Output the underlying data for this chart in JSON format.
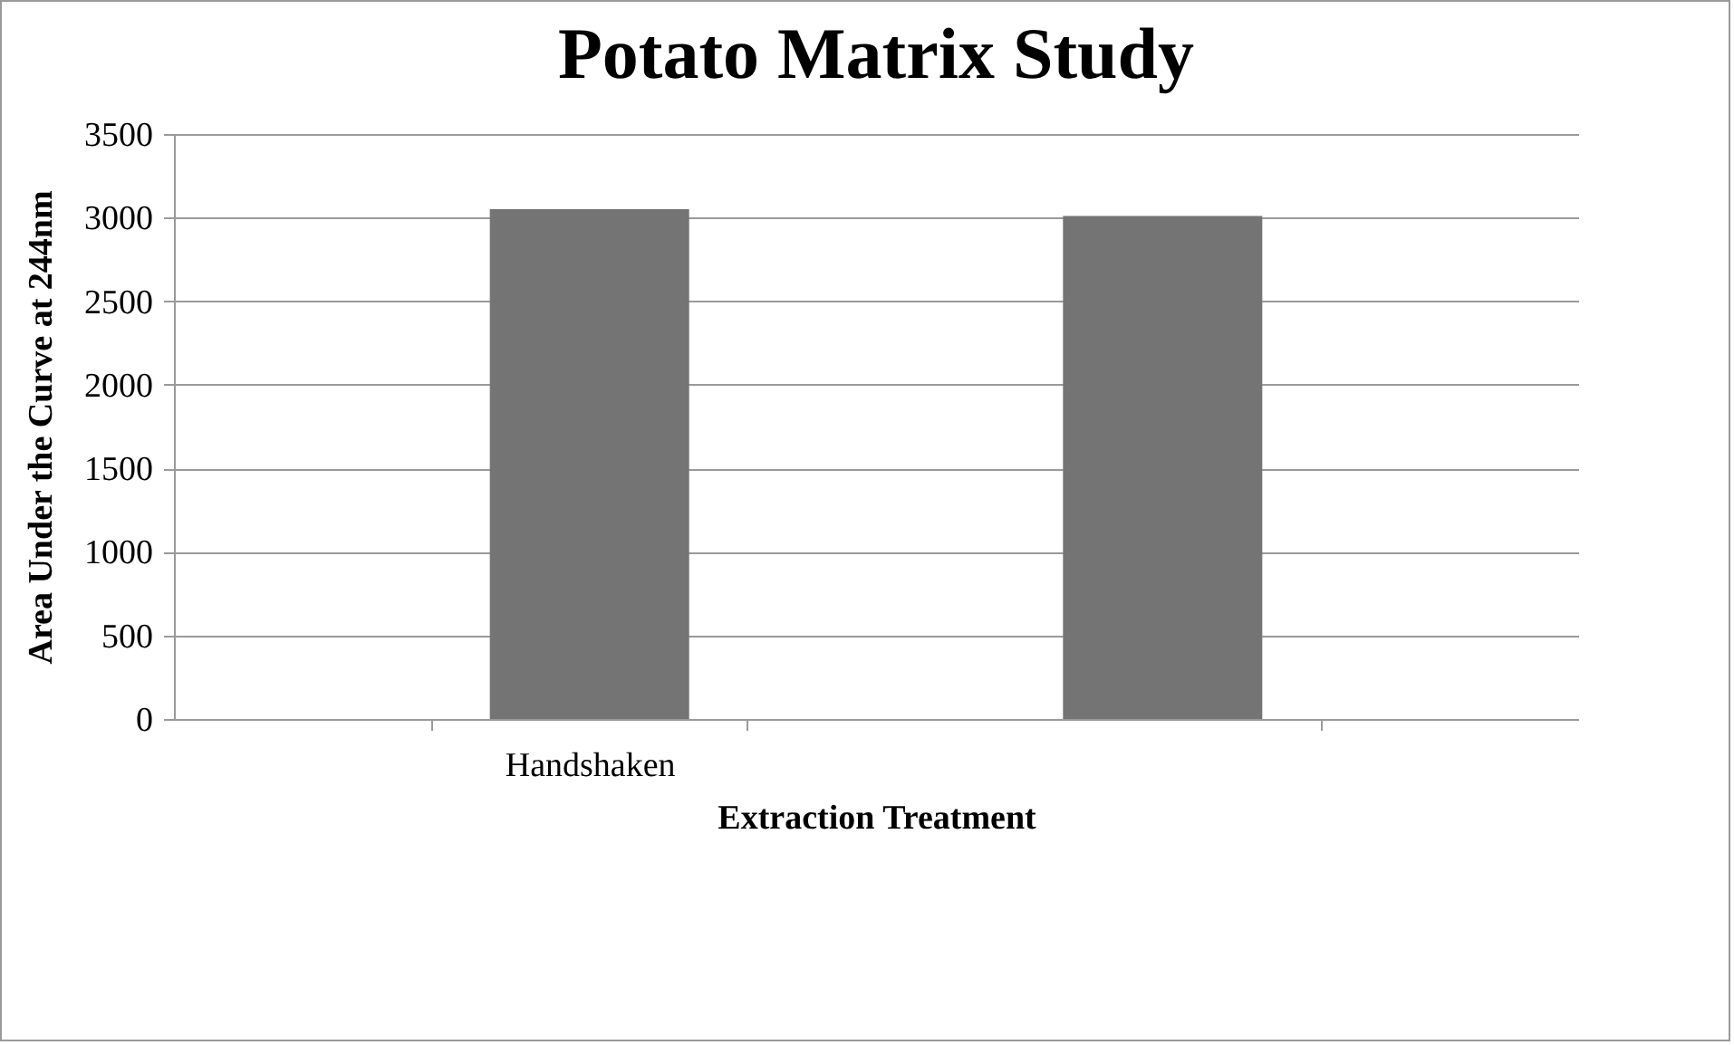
{
  "chart_data": {
    "type": "bar",
    "title": "Potato Matrix Study",
    "xlabel": "Extraction Treatment",
    "ylabel": "Area  Under the Curve at 244nm",
    "categories": [
      "Handshaken",
      null
    ],
    "values": [
      3050,
      3010
    ],
    "color": "#747474",
    "ylim": [
      0,
      3500
    ],
    "yticks": [
      0,
      500,
      1000,
      1500,
      2000,
      2500,
      3000,
      3500
    ],
    "grid": "y"
  }
}
